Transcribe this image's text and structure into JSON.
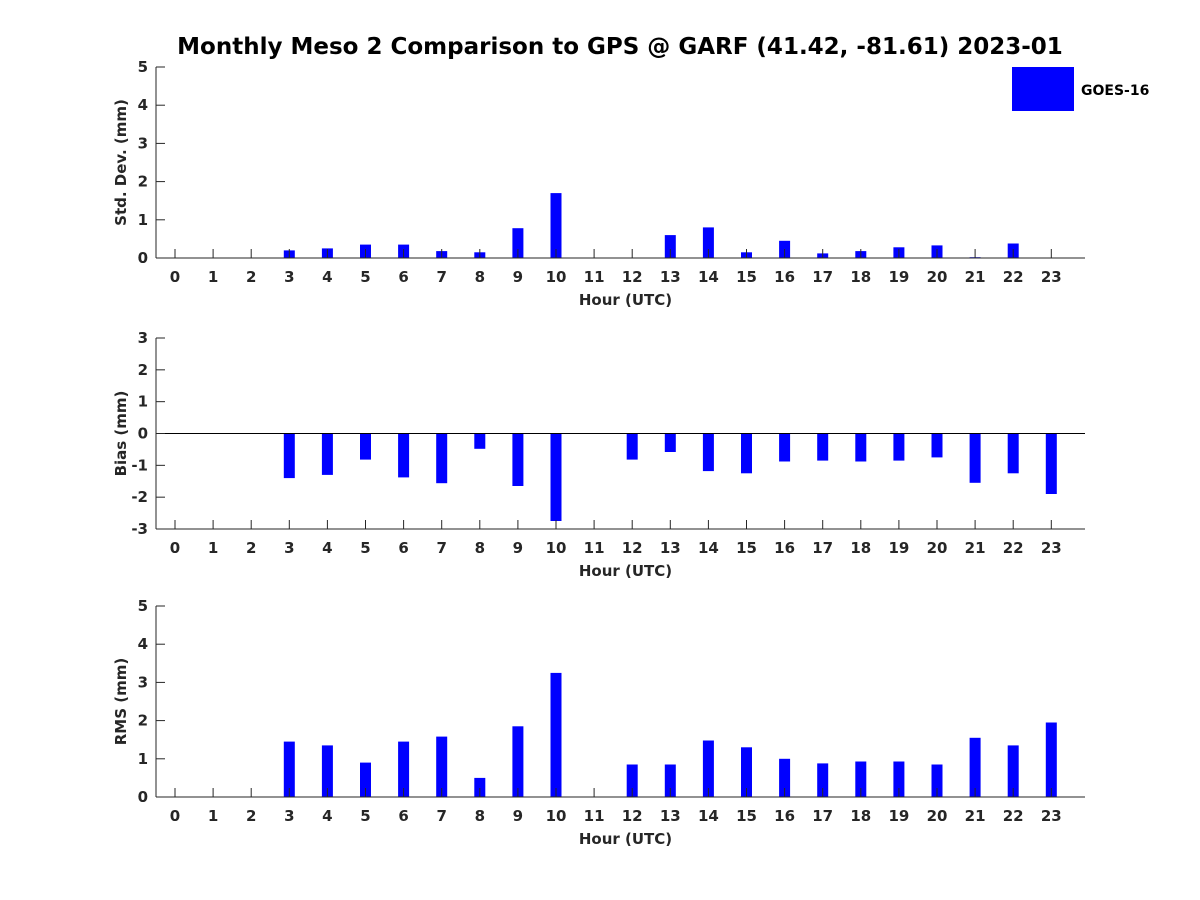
{
  "figure": {
    "title": "Monthly Meso 2 Comparison to GPS @ GARF (41.42, -81.61) 2023-01",
    "legend": {
      "label": "GOES-16",
      "placement": "top-right"
    },
    "bar_color": "#0000ff",
    "axis_color": "#262626"
  },
  "chart_data": [
    {
      "type": "bar",
      "name": "std-dev",
      "ylabel": "Std. Dev. (mm)",
      "xlabel": "Hour (UTC)",
      "ylim": [
        0,
        5
      ],
      "yticks": [
        0,
        1,
        2,
        3,
        4,
        5
      ],
      "categories": [
        "0",
        "1",
        "2",
        "3",
        "4",
        "5",
        "6",
        "7",
        "8",
        "9",
        "10",
        "11",
        "12",
        "13",
        "14",
        "15",
        "16",
        "17",
        "18",
        "19",
        "20",
        "21",
        "22",
        "23"
      ],
      "series": [
        {
          "name": "GOES-16",
          "values": [
            null,
            null,
            null,
            0.2,
            0.25,
            0.35,
            0.35,
            0.18,
            0.15,
            0.78,
            1.7,
            null,
            null,
            0.6,
            0.8,
            0.15,
            0.45,
            0.12,
            0.18,
            0.28,
            0.33,
            0.02,
            0.38,
            null
          ]
        }
      ]
    },
    {
      "type": "bar",
      "name": "bias",
      "ylabel": "Bias (mm)",
      "xlabel": "Hour (UTC)",
      "ylim": [
        -3,
        3
      ],
      "yticks": [
        -3,
        -2,
        -1,
        0,
        1,
        2,
        3
      ],
      "zero_line": true,
      "categories": [
        "0",
        "1",
        "2",
        "3",
        "4",
        "5",
        "6",
        "7",
        "8",
        "9",
        "10",
        "11",
        "12",
        "13",
        "14",
        "15",
        "16",
        "17",
        "18",
        "19",
        "20",
        "21",
        "22",
        "23"
      ],
      "series": [
        {
          "name": "GOES-16",
          "values": [
            null,
            null,
            null,
            -1.4,
            -1.3,
            -0.82,
            -1.38,
            -1.56,
            -0.48,
            -1.65,
            -2.75,
            null,
            -0.82,
            -0.58,
            -1.18,
            -1.25,
            -0.88,
            -0.85,
            -0.88,
            -0.85,
            -0.75,
            -1.55,
            -1.25,
            -1.9
          ]
        }
      ]
    },
    {
      "type": "bar",
      "name": "rms",
      "ylabel": "RMS (mm)",
      "xlabel": "Hour (UTC)",
      "ylim": [
        0,
        5
      ],
      "yticks": [
        0,
        1,
        2,
        3,
        4,
        5
      ],
      "categories": [
        "0",
        "1",
        "2",
        "3",
        "4",
        "5",
        "6",
        "7",
        "8",
        "9",
        "10",
        "11",
        "12",
        "13",
        "14",
        "15",
        "16",
        "17",
        "18",
        "19",
        "20",
        "21",
        "22",
        "23"
      ],
      "series": [
        {
          "name": "GOES-16",
          "values": [
            null,
            null,
            null,
            1.45,
            1.35,
            0.9,
            1.45,
            1.58,
            0.5,
            1.85,
            3.25,
            null,
            0.85,
            0.85,
            1.48,
            1.3,
            1.0,
            0.88,
            0.93,
            0.93,
            0.85,
            1.55,
            1.35,
            1.95
          ]
        }
      ]
    }
  ]
}
